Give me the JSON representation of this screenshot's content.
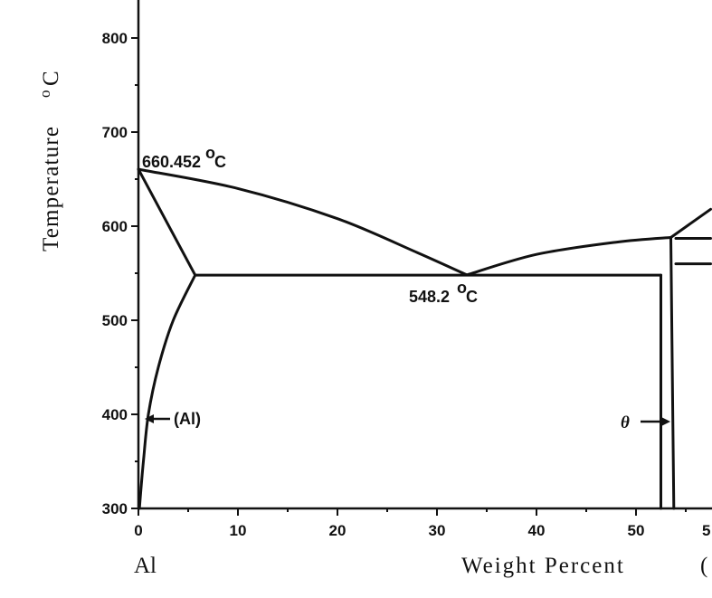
{
  "y_axis": {
    "label": "Temperature",
    "unit_prefix": "o",
    "unit": "C",
    "ticks": [
      300,
      400,
      500,
      600,
      700,
      800
    ]
  },
  "x_axis": {
    "label": "Weight Percent",
    "label_tail": "(",
    "ticks": [
      0,
      10,
      20,
      30,
      40,
      50
    ],
    "partial_tick": "5",
    "left_component": "Al"
  },
  "annotations": {
    "melting_point": "660.452",
    "eutectic": "548.2",
    "degree_symbol": "o",
    "unit_C": "C",
    "al_phase": "(Al)",
    "theta_phase": "θ"
  },
  "diagram_data": {
    "temperature_range": [
      300,
      850
    ],
    "composition_range": [
      0,
      57.5
    ],
    "al_melting_point": [
      0,
      660.452
    ],
    "eutectic_point": [
      33.0,
      548.2
    ],
    "eutectic_line": {
      "x_start": 5.7,
      "x_end": 52.5,
      "temperature": 548
    },
    "al_solvus": [
      [
        0.1,
        300
      ],
      [
        0.5,
        350
      ],
      [
        1.0,
        400
      ],
      [
        2.0,
        450
      ],
      [
        3.5,
        500
      ],
      [
        5.7,
        548
      ]
    ],
    "al_solidus": [
      [
        0,
        660.452
      ],
      [
        5.7,
        548
      ]
    ],
    "liquidus_al_side": [
      [
        0,
        660.452
      ],
      [
        10,
        640
      ],
      [
        20,
        608
      ],
      [
        28,
        572
      ],
      [
        33.0,
        548.2
      ]
    ],
    "liquidus_theta_side": [
      [
        33.0,
        548.2
      ],
      [
        40,
        570
      ],
      [
        48,
        583
      ],
      [
        53.5,
        588
      ]
    ],
    "theta_left_boundary": [
      [
        52.5,
        548
      ],
      [
        52.5,
        300
      ]
    ],
    "theta_right_boundary": [
      [
        53.5,
        588
      ],
      [
        53.8,
        300
      ]
    ],
    "theta_peak": [
      53.5,
      588
    ],
    "upper_right_line": [
      [
        53.5,
        588
      ],
      [
        57.5,
        618
      ]
    ],
    "horizontal_587": [
      [
        54,
        587
      ],
      [
        57.5,
        587
      ]
    ],
    "horizontal_560": [
      [
        54,
        560
      ],
      [
        57.5,
        560
      ]
    ]
  }
}
